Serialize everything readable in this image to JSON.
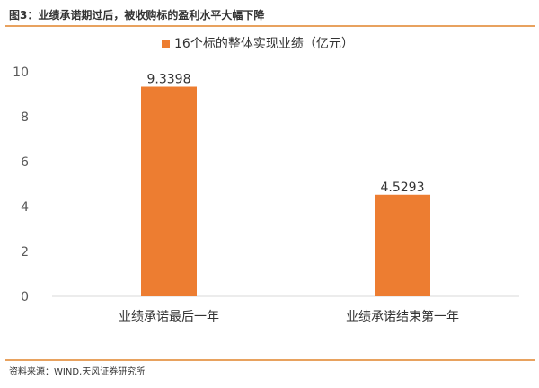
{
  "figure": {
    "title": "图3：业绩承诺期过后，被收购标的盈利水平大幅下降",
    "source": "资料来源：WIND,天风证券研究所"
  },
  "chart_data": {
    "type": "bar",
    "categories": [
      "业绩承诺最后一年",
      "业绩承诺结束第一年"
    ],
    "series": [
      {
        "name": "16个标的整体实现业绩（亿元）",
        "values": [
          9.3398,
          4.5293
        ],
        "color": "#ed7d31"
      }
    ],
    "value_labels": [
      "9.3398",
      "4.5293"
    ],
    "ylim": [
      0,
      10
    ],
    "yticks": [
      "0",
      "2",
      "4",
      "6",
      "8",
      "10"
    ],
    "grid": false,
    "legend_position": "top"
  }
}
